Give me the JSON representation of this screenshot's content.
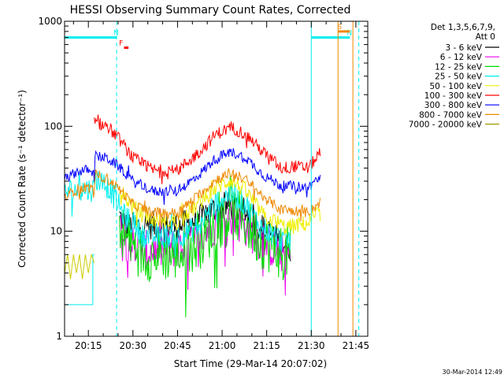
{
  "chart_data": {
    "type": "line",
    "title": "HESSI Observing Summary Count Rates, Corrected",
    "xlabel": "Start Time (29-Mar-14 20:07:02)",
    "ylabel": "Corrected Count Rate (s⁻¹ detector⁻¹)",
    "y_scale": "log",
    "ylim": [
      1,
      1000
    ],
    "xlim_minutes_of_day": [
      1207,
      1309
    ],
    "x_ticks": [
      {
        "label": "20:15",
        "t": 1215
      },
      {
        "label": "20:30",
        "t": 1230
      },
      {
        "label": "20:45",
        "t": 1245
      },
      {
        "label": "21:00",
        "t": 1260
      },
      {
        "label": "21:15",
        "t": 1275
      },
      {
        "label": "21:30",
        "t": 1290
      },
      {
        "label": "21:45",
        "t": 1305
      }
    ],
    "y_ticks": [
      {
        "label": "1",
        "v": 1
      },
      {
        "label": "10",
        "v": 10
      },
      {
        "label": "100",
        "v": 100
      },
      {
        "label": "1000",
        "v": 1000
      }
    ],
    "legend_header": [
      "Det 1,3,5,6,7,9,",
      "Att 0"
    ],
    "legend_position": "right",
    "timestamp": "30-Mar-2014 12:49",
    "series": [
      {
        "name": "3 - 6 keV",
        "color": "#000000",
        "noise": 0.14,
        "points": [
          [
            1225.5,
            14
          ],
          [
            1228,
            11
          ],
          [
            1235,
            11.5
          ],
          [
            1245,
            11
          ],
          [
            1252,
            13
          ],
          [
            1258,
            16.5
          ],
          [
            1263,
            17.5
          ],
          [
            1268,
            15
          ],
          [
            1273,
            11
          ],
          [
            1281,
            7.5
          ],
          [
            1283,
            7
          ]
        ]
      },
      {
        "name": "6 - 12 keV",
        "color": "#ee00ee",
        "noise": 0.2,
        "points": [
          [
            1225.5,
            11
          ],
          [
            1228,
            8
          ],
          [
            1234,
            6.5
          ],
          [
            1245,
            7
          ],
          [
            1252,
            8.5
          ],
          [
            1258,
            12
          ],
          [
            1263,
            13.5
          ],
          [
            1268,
            11
          ],
          [
            1273,
            8
          ],
          [
            1281,
            6
          ],
          [
            1283,
            6
          ]
        ]
      },
      {
        "name": "12 - 25 keV",
        "color": "#00dd00",
        "noise": 0.26,
        "points": [
          [
            1225.5,
            12
          ],
          [
            1228,
            8
          ],
          [
            1234,
            6
          ],
          [
            1245,
            6
          ],
          [
            1252,
            7.5
          ],
          [
            1258,
            11.5
          ],
          [
            1263,
            15
          ],
          [
            1268,
            12
          ],
          [
            1273,
            8
          ],
          [
            1281,
            6
          ],
          [
            1283,
            6.5
          ]
        ]
      },
      {
        "name": "25 - 50 keV",
        "color": "#00eeee",
        "noise": 0.12,
        "points": [
          [
            1207,
            24
          ],
          [
            1214,
            25
          ],
          [
            1217,
            25
          ],
          [
            1217.01,
            33
          ],
          [
            1222,
            26
          ],
          [
            1227,
            14
          ],
          [
            1234,
            9
          ],
          [
            1245,
            9
          ],
          [
            1252,
            11
          ],
          [
            1258,
            19
          ],
          [
            1263,
            23
          ],
          [
            1268,
            18
          ],
          [
            1273,
            11
          ],
          [
            1281,
            8
          ],
          [
            1283,
            8.5
          ]
        ]
      },
      {
        "name": "50 - 100 keV",
        "color": "#eeee00",
        "noise": 0.08,
        "points": [
          [
            1225.5,
            25
          ],
          [
            1230,
            17
          ],
          [
            1235,
            13
          ],
          [
            1245,
            12.5
          ],
          [
            1252,
            18
          ],
          [
            1258,
            26
          ],
          [
            1263,
            31
          ],
          [
            1268,
            24
          ],
          [
            1274,
            14
          ],
          [
            1281,
            11
          ],
          [
            1283,
            11
          ],
          [
            1283.01,
            11
          ],
          [
            1289,
            12
          ],
          [
            1293,
            15
          ]
        ]
      },
      {
        "name": "100 - 300 keV",
        "color": "#ff0000",
        "noise": 0.06,
        "points": [
          [
            1217,
            108
          ],
          [
            1221,
            102
          ],
          [
            1225,
            78
          ],
          [
            1230,
            50
          ],
          [
            1237,
            38
          ],
          [
            1245,
            38
          ],
          [
            1252,
            56
          ],
          [
            1258,
            84
          ],
          [
            1263,
            98
          ],
          [
            1268,
            84
          ],
          [
            1274,
            56
          ],
          [
            1280,
            40
          ],
          [
            1283,
            41
          ],
          [
            1283.01,
            42
          ],
          [
            1289,
            40
          ],
          [
            1293,
            56
          ]
        ]
      },
      {
        "name": "300 - 800 keV",
        "color": "#0000ff",
        "noise": 0.05,
        "points": [
          [
            1207,
            31
          ],
          [
            1211,
            37
          ],
          [
            1216,
            39
          ],
          [
            1217,
            33
          ],
          [
            1217.01,
            52
          ],
          [
            1221,
            50
          ],
          [
            1225,
            42
          ],
          [
            1230,
            30
          ],
          [
            1237,
            24
          ],
          [
            1245,
            24
          ],
          [
            1252,
            34
          ],
          [
            1258,
            50
          ],
          [
            1263,
            57
          ],
          [
            1268,
            50
          ],
          [
            1274,
            34
          ],
          [
            1280,
            27
          ],
          [
            1283,
            27
          ],
          [
            1283.01,
            27
          ],
          [
            1289,
            26
          ],
          [
            1293,
            33
          ]
        ]
      },
      {
        "name": "800 - 7000 keV",
        "color": "#ee8800",
        "noise": 0.05,
        "points": [
          [
            1207,
            21
          ],
          [
            1211,
            25
          ],
          [
            1216,
            26
          ],
          [
            1217,
            22
          ],
          [
            1217.01,
            35
          ],
          [
            1221,
            32
          ],
          [
            1225,
            26
          ],
          [
            1230,
            18
          ],
          [
            1237,
            15
          ],
          [
            1245,
            15
          ],
          [
            1252,
            22
          ],
          [
            1258,
            31
          ],
          [
            1263,
            36
          ],
          [
            1268,
            31
          ],
          [
            1274,
            21
          ],
          [
            1280,
            16
          ],
          [
            1283,
            16
          ],
          [
            1283.01,
            16
          ],
          [
            1289,
            15
          ],
          [
            1293,
            19
          ]
        ]
      },
      {
        "name": "7000 - 20000 keV",
        "color": "#999900",
        "noise": 0.0,
        "points": []
      }
    ],
    "attenuator_bands": [
      {
        "color": "#00eeee",
        "points": [
          [
            1207,
            2
          ],
          [
            1216.5,
            2
          ],
          [
            1216.5,
            6
          ],
          [
            1217,
            6
          ]
        ]
      },
      {
        "color": "#cccc00",
        "points": [
          [
            1207,
            4
          ],
          [
            1208,
            6
          ],
          [
            1209,
            3.5
          ],
          [
            1210,
            6
          ],
          [
            1211,
            4
          ],
          [
            1212,
            6
          ],
          [
            1213,
            3.5
          ],
          [
            1214,
            6
          ],
          [
            1215,
            4
          ],
          [
            1216,
            6
          ],
          [
            1217,
            5
          ]
        ]
      }
    ],
    "markers": [
      {
        "label": "N",
        "kind": "night",
        "color": "#00eeee",
        "level": 700,
        "x_start": 1207,
        "x_end": 1224.5,
        "x_line": 1224.5
      },
      {
        "label": "F",
        "kind": "flag",
        "color": "#ff0000",
        "level": 560,
        "x_start": 1227,
        "x_end": 1228.5
      },
      {
        "label": "N",
        "kind": "night",
        "color": "#00eeee",
        "level": 700,
        "x_start": 1290,
        "x_end": 1303,
        "x_line": 1290
      },
      {
        "label": "S",
        "kind": "saa",
        "color": "#ee8800",
        "level": 800,
        "x_start": 1299,
        "x_end": 1303,
        "x_line": 1299
      },
      {
        "label": "",
        "kind": "line",
        "color": "#ee8800",
        "x_line": 1304
      },
      {
        "label": "",
        "kind": "line",
        "color": "#00eeee",
        "x_line": 1306
      }
    ]
  }
}
